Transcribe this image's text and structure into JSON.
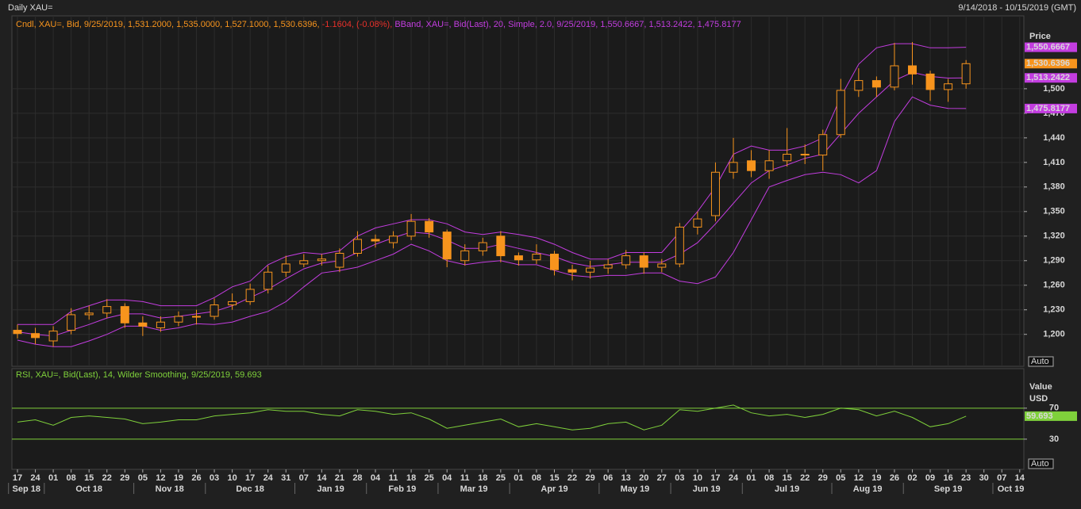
{
  "chart_data": [
    {
      "type": "candlestick",
      "title": "Daily XAU=",
      "subtitle": "9/14/2018 - 10/15/2019 (GMT)",
      "legend": [
        {
          "text": "Cndl, XAU=, Bid, 9/25/2019, 1,531.2000, 1,535.0000, 1,527.1000, 1,530.6396,",
          "color": "#f7941d"
        },
        {
          "text": "-1.1604, (-0.08%),",
          "color": "#e8302a"
        },
        {
          "text": "BBand, XAU=, Bid(Last),  20, Simple, 2.0, 9/25/2019, 1,550.6667, 1,513.2422, 1,475.8177",
          "color": "#c33de0"
        }
      ],
      "axis_label": "Price",
      "auto_label": "Auto",
      "categories": [
        "17",
        "24",
        "01",
        "08",
        "15",
        "22",
        "29",
        "05",
        "12",
        "19",
        "26",
        "03",
        "10",
        "17",
        "24",
        "31",
        "07",
        "14",
        "21",
        "28",
        "04",
        "11",
        "18",
        "25",
        "04",
        "11",
        "18",
        "25",
        "01",
        "08",
        "15",
        "22",
        "29",
        "06",
        "13",
        "20",
        "27",
        "03",
        "10",
        "17",
        "24",
        "01",
        "08",
        "15",
        "22",
        "29",
        "05",
        "12",
        "19",
        "26",
        "02",
        "09",
        "16",
        "23",
        "30",
        "07",
        "14"
      ],
      "month_labels": [
        "Sep 18",
        "Oct 18",
        "Nov 18",
        "Dec 18",
        "Jan 19",
        "Feb 19",
        "Mar 19",
        "Apr 19",
        "May 19",
        "Jun 19",
        "Jul 19",
        "Aug 19",
        "Sep 19",
        "Oct 19"
      ],
      "open": [
        1205,
        1201,
        1192,
        1205,
        1224,
        1226,
        1234,
        1214,
        1208,
        1215,
        1222,
        1222,
        1236,
        1240,
        1255,
        1276,
        1286,
        1290,
        1282,
        1299,
        1316,
        1312,
        1320,
        1338,
        1325,
        1290,
        1302,
        1320,
        1296,
        1291,
        1298,
        1279,
        1276,
        1281,
        1285,
        1296,
        1282,
        1286,
        1331,
        1345,
        1398,
        1412,
        1400,
        1412,
        1420,
        1419,
        1444,
        1498,
        1510,
        1502,
        1528,
        1518,
        1499,
        1506,
        null,
        null,
        null
      ],
      "high": [
        1212,
        1208,
        1210,
        1232,
        1235,
        1243,
        1238,
        1222,
        1222,
        1228,
        1230,
        1244,
        1250,
        1262,
        1284,
        1296,
        1298,
        1298,
        1305,
        1326,
        1322,
        1326,
        1347,
        1342,
        1328,
        1310,
        1318,
        1326,
        1300,
        1310,
        1302,
        1285,
        1290,
        1292,
        1303,
        1300,
        1292,
        1336,
        1350,
        1410,
        1440,
        1425,
        1425,
        1452,
        1432,
        1450,
        1512,
        1525,
        1515,
        1556,
        1557,
        1522,
        1512,
        1535,
        null,
        null,
        null
      ],
      "low": [
        1195,
        1188,
        1185,
        1200,
        1218,
        1220,
        1208,
        1198,
        1203,
        1210,
        1212,
        1218,
        1230,
        1236,
        1250,
        1270,
        1282,
        1284,
        1276,
        1295,
        1306,
        1305,
        1315,
        1318,
        1282,
        1284,
        1296,
        1288,
        1284,
        1286,
        1272,
        1266,
        1268,
        1274,
        1280,
        1274,
        1276,
        1282,
        1322,
        1338,
        1390,
        1392,
        1390,
        1405,
        1408,
        1400,
        1440,
        1490,
        1490,
        1498,
        1505,
        1485,
        1484,
        1500,
        null,
        null,
        null
      ],
      "close": [
        1201,
        1196,
        1204,
        1224,
        1226,
        1234,
        1214,
        1210,
        1215,
        1222,
        1222,
        1236,
        1240,
        1255,
        1276,
        1286,
        1290,
        1292,
        1299,
        1316,
        1314,
        1320,
        1338,
        1325,
        1292,
        1302,
        1312,
        1296,
        1291,
        1298,
        1279,
        1276,
        1281,
        1285,
        1296,
        1282,
        1286,
        1331,
        1341,
        1398,
        1410,
        1400,
        1412,
        1420,
        1419,
        1444,
        1498,
        1510,
        1502,
        1528,
        1518,
        1499,
        1506,
        1530.6396,
        null,
        null,
        null
      ],
      "color": "#f7941d",
      "bands": {
        "color": "#c33de0",
        "upper": [
          1212,
          1212,
          1212,
          1228,
          1235,
          1242,
          1242,
          1240,
          1235,
          1235,
          1235,
          1245,
          1258,
          1265,
          1285,
          1295,
          1300,
          1298,
          1302,
          1320,
          1330,
          1335,
          1340,
          1340,
          1335,
          1325,
          1322,
          1325,
          1322,
          1318,
          1310,
          1300,
          1292,
          1292,
          1300,
          1300,
          1300,
          1325,
          1350,
          1380,
          1420,
          1430,
          1425,
          1425,
          1430,
          1440,
          1490,
          1530,
          1550,
          1555,
          1555,
          1550,
          1550,
          1550.6667,
          null,
          null,
          null
        ],
        "middle": [
          1203,
          1200,
          1198,
          1205,
          1212,
          1220,
          1225,
          1225,
          1220,
          1222,
          1225,
          1228,
          1235,
          1245,
          1255,
          1268,
          1280,
          1287,
          1290,
          1300,
          1310,
          1318,
          1325,
          1323,
          1315,
          1305,
          1305,
          1310,
          1305,
          1300,
          1295,
          1287,
          1283,
          1285,
          1288,
          1288,
          1288,
          1298,
          1312,
          1335,
          1360,
          1385,
          1400,
          1407,
          1415,
          1420,
          1445,
          1470,
          1490,
          1510,
          1520,
          1515,
          1513,
          1513.2422,
          null,
          null,
          null
        ],
        "lower": [
          1193,
          1188,
          1185,
          1185,
          1192,
          1200,
          1210,
          1210,
          1205,
          1208,
          1213,
          1212,
          1215,
          1222,
          1228,
          1240,
          1258,
          1275,
          1278,
          1282,
          1290,
          1298,
          1310,
          1302,
          1290,
          1285,
          1288,
          1290,
          1285,
          1285,
          1278,
          1272,
          1270,
          1272,
          1272,
          1275,
          1275,
          1265,
          1262,
          1270,
          1300,
          1340,
          1380,
          1388,
          1395,
          1398,
          1395,
          1385,
          1400,
          1460,
          1490,
          1480,
          1476,
          1475.8177,
          null,
          null,
          null
        ]
      },
      "ylim": [
        1161,
        1589
      ],
      "yticks": [
        {
          "value": 1200,
          "label": "1,200"
        },
        {
          "value": 1230,
          "label": "1,230"
        },
        {
          "value": 1260,
          "label": "1,260"
        },
        {
          "value": 1290,
          "label": "1,290"
        },
        {
          "value": 1320,
          "label": "1,320"
        },
        {
          "value": 1350,
          "label": "1,350"
        },
        {
          "value": 1380,
          "label": "1,380"
        },
        {
          "value": 1410,
          "label": "1,410"
        },
        {
          "value": 1440,
          "label": "1,440"
        },
        {
          "value": 1470,
          "label": "1,470"
        },
        {
          "value": 1500,
          "label": "1,500"
        }
      ],
      "grid": true,
      "last_labels": [
        {
          "value": 1550.6667,
          "label": "1,550.6667",
          "color": "#c33de0"
        },
        {
          "value": 1513.2422,
          "label": "1,513.2422",
          "color": "#c33de0"
        },
        {
          "value": 1475.8177,
          "label": "1,475.8177",
          "color": "#c33de0"
        },
        {
          "value": 1530.6396,
          "label": "1,530.6396",
          "color": "#f7941d"
        }
      ]
    },
    {
      "type": "line",
      "legend": [
        {
          "text": "RSI, XAU=, Bid(Last),  14, Wilder Smoothing, 9/25/2019, 59.693",
          "color": "#7fd13b"
        }
      ],
      "axis_label": [
        "Value",
        "USD"
      ],
      "auto_label": "Auto",
      "values": [
        52,
        55,
        48,
        58,
        60,
        58,
        56,
        50,
        52,
        55,
        55,
        60,
        62,
        64,
        68,
        66,
        66,
        62,
        60,
        68,
        66,
        62,
        64,
        56,
        44,
        48,
        52,
        56,
        46,
        50,
        46,
        42,
        44,
        50,
        52,
        42,
        48,
        68,
        66,
        70,
        74,
        64,
        60,
        62,
        58,
        62,
        70,
        68,
        60,
        66,
        58,
        46,
        50,
        59.693,
        null,
        null,
        null
      ],
      "color": "#7fd13b",
      "ylim": [
        -9,
        121
      ],
      "yticks": [
        30,
        70
      ],
      "grid": true,
      "last_label": {
        "value": 59.693,
        "label": "59.693",
        "color": "#7fd13b"
      }
    }
  ]
}
